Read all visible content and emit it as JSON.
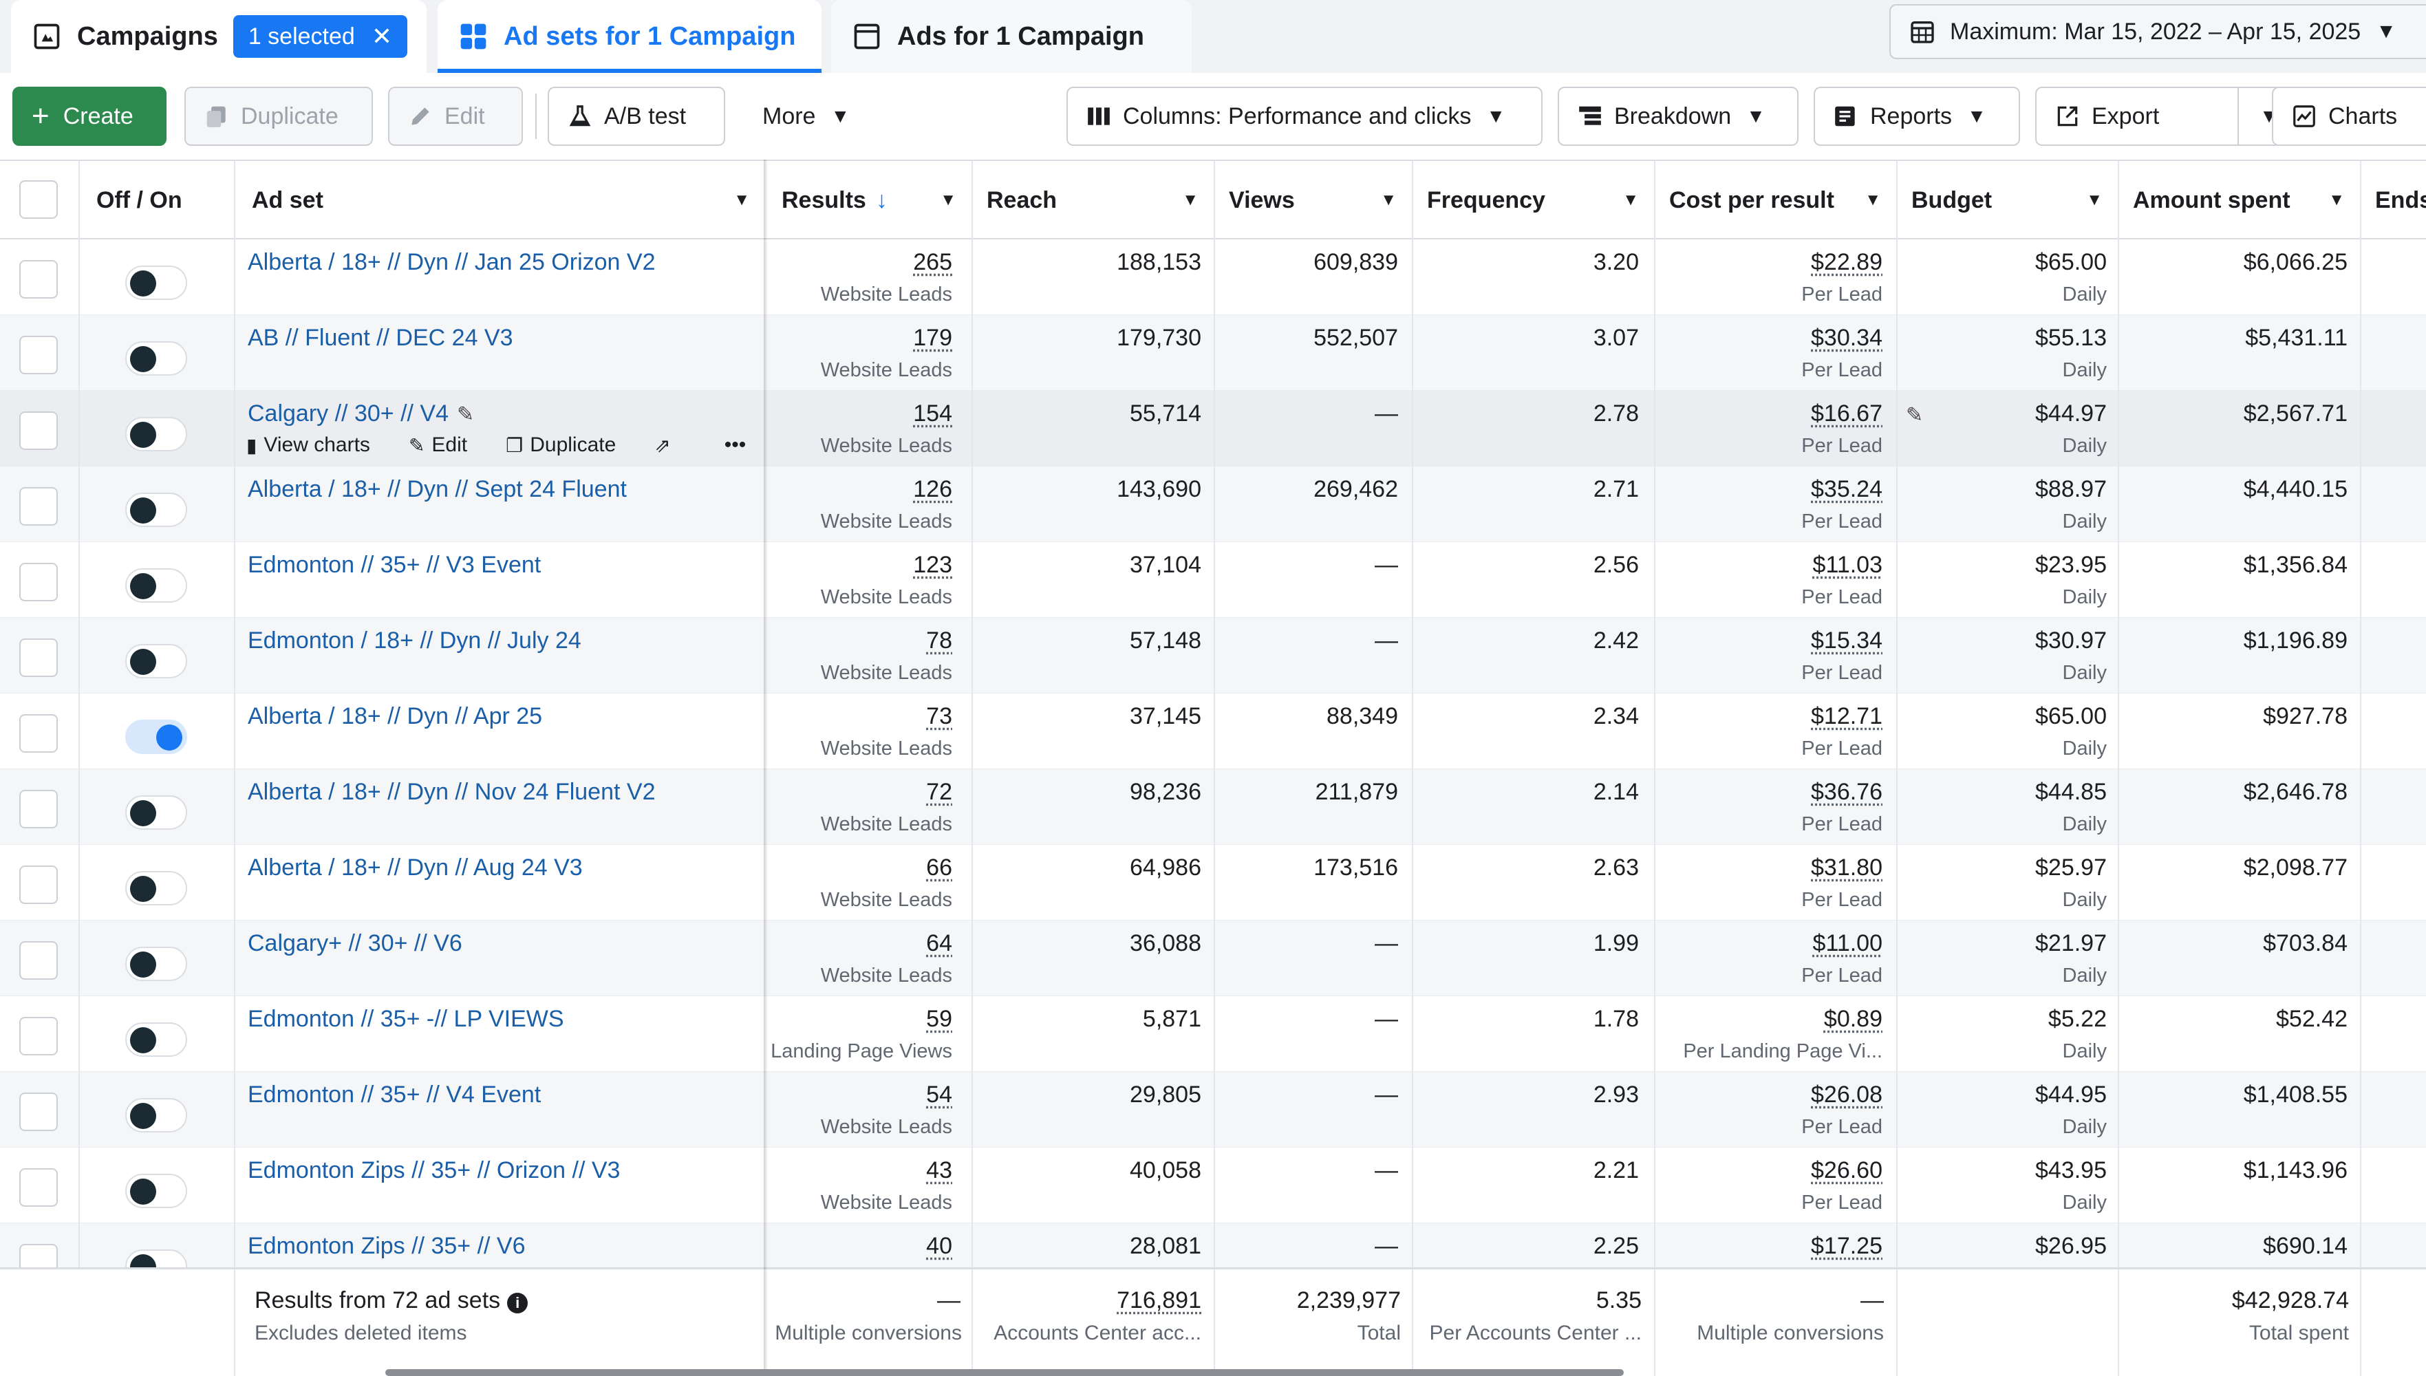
{
  "tabs": {
    "campaigns": {
      "label": "Campaigns",
      "selected_badge": "1 selected",
      "clear_icon": "close-icon"
    },
    "adsets": {
      "label": "Ad sets for 1 Campaign"
    },
    "ads": {
      "label": "Ads for 1 Campaign"
    }
  },
  "date_range": {
    "label": "Maximum: Mar 15, 2022 – Apr 15, 2025"
  },
  "toolbar": {
    "create": "Create",
    "duplicate": "Duplicate",
    "edit": "Edit",
    "ab_test": "A/B test",
    "more": "More",
    "columns": "Columns: Performance and clicks",
    "breakdown": "Breakdown",
    "reports": "Reports",
    "export": "Export",
    "charts": "Charts"
  },
  "columns": {
    "offon": "Off / On",
    "adset": "Ad set",
    "results": "Results",
    "reach": "Reach",
    "views": "Views",
    "frequency": "Frequency",
    "cpr": "Cost per result",
    "budget": "Budget",
    "spent": "Amount spent",
    "ends": "Ends"
  },
  "row_actions": {
    "view_charts": "View charts",
    "edit": "Edit",
    "duplicate": "Duplicate",
    "more": "•••"
  },
  "rows": [
    {
      "name": "Alberta / 18+ // Dyn // Jan 25 Orizon V2",
      "on": false,
      "results": "265",
      "result_type": "Website Leads",
      "reach": "188,153",
      "views": "609,839",
      "frequency": "3.20",
      "cpr": "$22.89",
      "cpr_type": "Per Lead",
      "budget": "$65.00",
      "budget_type": "Daily",
      "spent": "$6,066.25"
    },
    {
      "name": "AB // Fluent // DEC 24 V3",
      "on": false,
      "results": "179",
      "result_type": "Website Leads",
      "reach": "179,730",
      "views": "552,507",
      "frequency": "3.07",
      "cpr": "$30.34",
      "cpr_type": "Per Lead",
      "budget": "$55.13",
      "budget_type": "Daily",
      "spent": "$5,431.11"
    },
    {
      "name": "Calgary // 30+ // V4",
      "on": false,
      "results": "154",
      "result_type": "Website Leads",
      "reach": "55,714",
      "views": "—",
      "frequency": "2.78",
      "cpr": "$16.67",
      "cpr_type": "Per Lead",
      "budget": "$44.97",
      "budget_type": "Daily",
      "spent": "$2,567.71"
    },
    {
      "name": "Alberta / 18+ // Dyn // Sept 24 Fluent",
      "on": false,
      "results": "126",
      "result_type": "Website Leads",
      "reach": "143,690",
      "views": "269,462",
      "frequency": "2.71",
      "cpr": "$35.24",
      "cpr_type": "Per Lead",
      "budget": "$88.97",
      "budget_type": "Daily",
      "spent": "$4,440.15"
    },
    {
      "name": "Edmonton // 35+ // V3 Event",
      "on": false,
      "results": "123",
      "result_type": "Website Leads",
      "reach": "37,104",
      "views": "—",
      "frequency": "2.56",
      "cpr": "$11.03",
      "cpr_type": "Per Lead",
      "budget": "$23.95",
      "budget_type": "Daily",
      "spent": "$1,356.84"
    },
    {
      "name": "Edmonton / 18+ // Dyn // July 24",
      "on": false,
      "results": "78",
      "result_type": "Website Leads",
      "reach": "57,148",
      "views": "—",
      "frequency": "2.42",
      "cpr": "$15.34",
      "cpr_type": "Per Lead",
      "budget": "$30.97",
      "budget_type": "Daily",
      "spent": "$1,196.89"
    },
    {
      "name": "Alberta / 18+ // Dyn // Apr 25",
      "on": true,
      "results": "73",
      "result_type": "Website Leads",
      "reach": "37,145",
      "views": "88,349",
      "frequency": "2.34",
      "cpr": "$12.71",
      "cpr_type": "Per Lead",
      "budget": "$65.00",
      "budget_type": "Daily",
      "spent": "$927.78"
    },
    {
      "name": "Alberta / 18+ // Dyn // Nov 24 Fluent V2",
      "on": false,
      "results": "72",
      "result_type": "Website Leads",
      "reach": "98,236",
      "views": "211,879",
      "frequency": "2.14",
      "cpr": "$36.76",
      "cpr_type": "Per Lead",
      "budget": "$44.85",
      "budget_type": "Daily",
      "spent": "$2,646.78"
    },
    {
      "name": "Alberta / 18+ // Dyn // Aug 24 V3",
      "on": false,
      "results": "66",
      "result_type": "Website Leads",
      "reach": "64,986",
      "views": "173,516",
      "frequency": "2.63",
      "cpr": "$31.80",
      "cpr_type": "Per Lead",
      "budget": "$25.97",
      "budget_type": "Daily",
      "spent": "$2,098.77"
    },
    {
      "name": "Calgary+ // 30+ // V6",
      "on": false,
      "results": "64",
      "result_type": "Website Leads",
      "reach": "36,088",
      "views": "—",
      "frequency": "1.99",
      "cpr": "$11.00",
      "cpr_type": "Per Lead",
      "budget": "$21.97",
      "budget_type": "Daily",
      "spent": "$703.84"
    },
    {
      "name": "Edmonton // 35+ -// LP VIEWS",
      "on": false,
      "results": "59",
      "result_type": "Landing Page Views",
      "reach": "5,871",
      "views": "—",
      "frequency": "1.78",
      "cpr": "$0.89",
      "cpr_type": "Per Landing Page Vi...",
      "budget": "$5.22",
      "budget_type": "Daily",
      "spent": "$52.42"
    },
    {
      "name": "Edmonton // 35+ // V4 Event",
      "on": false,
      "results": "54",
      "result_type": "Website Leads",
      "reach": "29,805",
      "views": "—",
      "frequency": "2.93",
      "cpr": "$26.08",
      "cpr_type": "Per Lead",
      "budget": "$44.95",
      "budget_type": "Daily",
      "spent": "$1,408.55"
    },
    {
      "name": "Edmonton Zips // 35+ // Orizon // V3",
      "on": false,
      "results": "43",
      "result_type": "Website Leads",
      "reach": "40,058",
      "views": "—",
      "frequency": "2.21",
      "cpr": "$26.60",
      "cpr_type": "Per Lead",
      "budget": "$43.95",
      "budget_type": "Daily",
      "spent": "$1,143.96"
    },
    {
      "name": "Edmonton Zips // 35+ // V6",
      "on": false,
      "results": "40",
      "result_type": "",
      "reach": "28,081",
      "views": "—",
      "frequency": "2.25",
      "cpr": "$17.25",
      "cpr_type": "",
      "budget": "$26.95",
      "budget_type": "",
      "spent": "$690.14"
    }
  ],
  "footer": {
    "title": "Results from 72 ad sets",
    "subtitle": "Excludes deleted items",
    "results": "—",
    "results_sub": "Multiple conversions",
    "reach": "716,891",
    "reach_sub": "Accounts Center acc...",
    "views": "2,239,977",
    "views_sub": "Total",
    "frequency": "5.35",
    "frequency_sub": "Per Accounts Center ...",
    "cpr": "—",
    "cpr_sub": "Multiple conversions",
    "spent": "$42,928.74",
    "spent_sub": "Total spent"
  },
  "colors": {
    "accent": "#1877f2",
    "create": "#2c8a4f",
    "link": "#1a5ea8"
  }
}
